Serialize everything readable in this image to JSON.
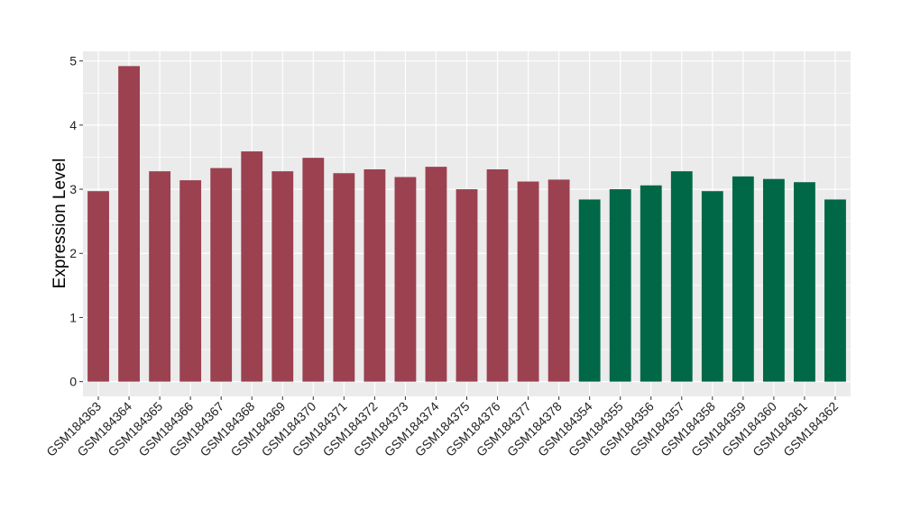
{
  "chart_data": {
    "type": "bar",
    "ylabel": "Expression Level",
    "xlabel": "",
    "title": "",
    "ylim": [
      -0.23,
      5.15
    ],
    "yticks": [
      0,
      1,
      2,
      3,
      4,
      5
    ],
    "grid": true,
    "legend": "none",
    "categories": [
      "GSM184363",
      "GSM184364",
      "GSM184365",
      "GSM184366",
      "GSM184367",
      "GSM184368",
      "GSM184369",
      "GSM184370",
      "GSM184371",
      "GSM184372",
      "GSM184373",
      "GSM184374",
      "GSM184375",
      "GSM184376",
      "GSM184377",
      "GSM184378",
      "GSM184354",
      "GSM184355",
      "GSM184356",
      "GSM184357",
      "GSM184358",
      "GSM184359",
      "GSM184360",
      "GSM184361",
      "GSM184362"
    ],
    "values": [
      2.97,
      4.92,
      3.28,
      3.14,
      3.33,
      3.59,
      3.28,
      3.49,
      3.25,
      3.31,
      3.19,
      3.35,
      3.0,
      3.31,
      3.12,
      3.15,
      2.84,
      3.0,
      3.06,
      3.28,
      2.97,
      3.2,
      3.16,
      3.11,
      2.84
    ],
    "bar_colors": [
      "#9b4150",
      "#9b4150",
      "#9b4150",
      "#9b4150",
      "#9b4150",
      "#9b4150",
      "#9b4150",
      "#9b4150",
      "#9b4150",
      "#9b4150",
      "#9b4150",
      "#9b4150",
      "#9b4150",
      "#9b4150",
      "#9b4150",
      "#9b4150",
      "#006847",
      "#006847",
      "#006847",
      "#006847",
      "#006847",
      "#006847",
      "#006847",
      "#006847",
      "#006847"
    ],
    "panel_background": "#ebebeb",
    "grid_color": "#ffffff"
  }
}
